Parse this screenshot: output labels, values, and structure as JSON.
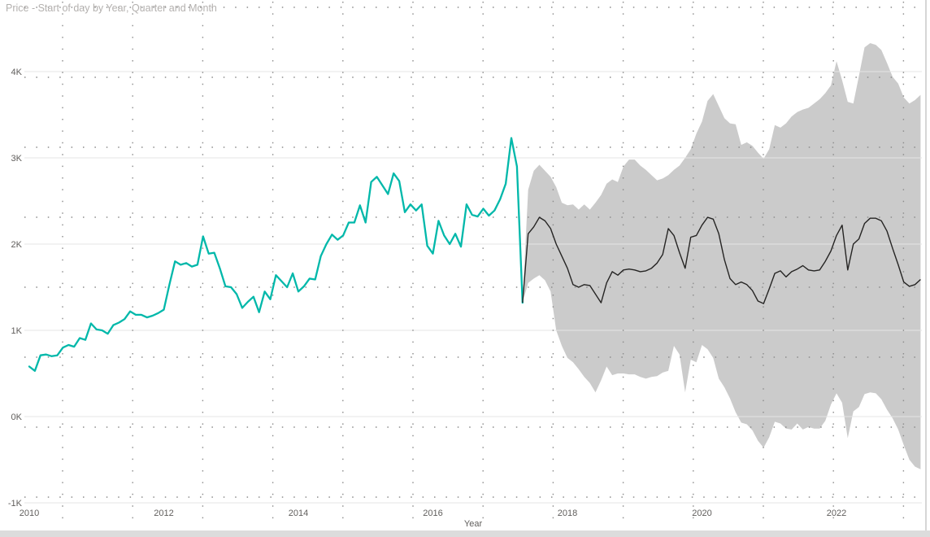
{
  "chart_data": {
    "type": "line",
    "title": "Price - Start of day by Year, Quarter and Month",
    "xlabel": "Year",
    "ylabel": "",
    "legend": "none",
    "grid": true,
    "xlim": [
      2009.93,
      2023.3
    ],
    "ylim_thousands": [
      -1.4,
      4.85
    ],
    "x_ticks": {
      "values": [
        2010,
        2012,
        2014,
        2016,
        2018,
        2020,
        2022
      ],
      "labels": [
        "2010",
        "2012",
        "2014",
        "2016",
        "2018",
        "2020",
        "2022"
      ]
    },
    "y_ticks": {
      "values_thousands": [
        4,
        3,
        2,
        1,
        0,
        -1
      ],
      "labels": [
        "4K",
        "3K",
        "2K",
        "1K",
        "0K",
        "-1K"
      ]
    },
    "unit": "thousands",
    "series": [
      {
        "name": "history",
        "color": "#01B8AA",
        "x_start": 2010.0,
        "x_end": 2017.333,
        "points_per_year": 12,
        "values_thousands": [
          0.58,
          0.53,
          0.71,
          0.72,
          0.7,
          0.71,
          0.8,
          0.83,
          0.81,
          0.91,
          0.89,
          1.08,
          1.01,
          1.0,
          0.96,
          1.06,
          1.09,
          1.13,
          1.22,
          1.18,
          1.18,
          1.15,
          1.17,
          1.2,
          1.24,
          1.53,
          1.8,
          1.76,
          1.78,
          1.74,
          1.76,
          2.09,
          1.89,
          1.9,
          1.72,
          1.51,
          1.5,
          1.42,
          1.26,
          1.33,
          1.39,
          1.21,
          1.45,
          1.36,
          1.64,
          1.57,
          1.5,
          1.66,
          1.45,
          1.51,
          1.6,
          1.59,
          1.86,
          2.0,
          2.11,
          2.05,
          2.1,
          2.25,
          2.25,
          2.45,
          2.25,
          2.72,
          2.78,
          2.68,
          2.58,
          2.82,
          2.73,
          2.37,
          2.46,
          2.39,
          2.46,
          1.98,
          1.89,
          2.27,
          2.1,
          2.0,
          2.12,
          1.97,
          2.46,
          2.34,
          2.32,
          2.41,
          2.33,
          2.39,
          2.52,
          2.7,
          3.23,
          2.9,
          1.32
        ]
      },
      {
        "name": "forecast",
        "color": "#252423",
        "x_start": 2017.333,
        "x_end": 2023.25,
        "points_per_year": 12,
        "values_thousands": [
          1.32,
          2.12,
          2.2,
          2.31,
          2.27,
          2.18,
          2.0,
          1.86,
          1.72,
          1.53,
          1.5,
          1.53,
          1.52,
          1.42,
          1.32,
          1.55,
          1.68,
          1.64,
          1.7,
          1.71,
          1.7,
          1.68,
          1.69,
          1.72,
          1.78,
          1.88,
          2.18,
          2.1,
          1.9,
          1.72,
          2.08,
          2.1,
          2.22,
          2.31,
          2.29,
          2.12,
          1.82,
          1.6,
          1.53,
          1.56,
          1.53,
          1.46,
          1.34,
          1.31,
          1.48,
          1.66,
          1.69,
          1.62,
          1.68,
          1.71,
          1.75,
          1.7,
          1.69,
          1.7,
          1.8,
          1.92,
          2.1,
          2.22,
          1.7,
          2.0,
          2.06,
          2.24,
          2.3,
          2.3,
          2.27,
          2.15,
          1.95,
          1.76,
          1.56,
          1.51,
          1.53,
          1.59
        ]
      }
    ],
    "band": {
      "name": "forecast-confidence-interval",
      "color": "#CBCBCB",
      "x_start": 2017.333,
      "x_end": 2023.25,
      "upper_thousands": [
        1.32,
        2.63,
        2.85,
        2.92,
        2.85,
        2.78,
        2.66,
        2.48,
        2.45,
        2.46,
        2.4,
        2.46,
        2.4,
        2.48,
        2.57,
        2.7,
        2.75,
        2.72,
        2.9,
        2.98,
        2.98,
        2.91,
        2.86,
        2.8,
        2.74,
        2.76,
        2.8,
        2.86,
        2.91,
        3.0,
        3.1,
        3.28,
        3.42,
        3.66,
        3.74,
        3.6,
        3.46,
        3.4,
        3.39,
        3.15,
        3.18,
        3.14,
        3.06,
        2.99,
        3.1,
        3.38,
        3.35,
        3.4,
        3.48,
        3.53,
        3.56,
        3.58,
        3.63,
        3.68,
        3.75,
        3.84,
        4.12,
        3.9,
        3.65,
        3.63,
        3.95,
        4.28,
        4.33,
        4.31,
        4.25,
        4.1,
        3.94,
        3.86,
        3.7,
        3.63,
        3.67,
        3.73
      ],
      "lower_thousands": [
        1.32,
        1.55,
        1.6,
        1.64,
        1.58,
        1.45,
        1.0,
        0.82,
        0.68,
        0.63,
        0.55,
        0.46,
        0.39,
        0.28,
        0.42,
        0.58,
        0.48,
        0.5,
        0.5,
        0.49,
        0.49,
        0.46,
        0.44,
        0.46,
        0.47,
        0.51,
        0.53,
        0.82,
        0.72,
        0.28,
        0.66,
        0.63,
        0.83,
        0.78,
        0.68,
        0.44,
        0.34,
        0.21,
        0.05,
        -0.07,
        -0.09,
        -0.16,
        -0.28,
        -0.36,
        -0.24,
        -0.06,
        -0.08,
        -0.14,
        -0.15,
        -0.08,
        -0.15,
        -0.12,
        -0.14,
        -0.14,
        -0.05,
        0.14,
        0.27,
        0.16,
        -0.25,
        0.06,
        0.11,
        0.26,
        0.28,
        0.27,
        0.2,
        0.08,
        -0.02,
        -0.15,
        -0.33,
        -0.5,
        -0.58,
        -0.61
      ]
    },
    "theme": {
      "background": "#FFFFFF",
      "history_line": "#01B8AA",
      "forecast_line": "#252423",
      "confidence_band": "#CBCBCB",
      "major_gridline": "#E6E6E6",
      "dot_gridline": "#8C8C8C",
      "axis_text": "#605E5C",
      "title_text": "#B3B0AE",
      "scrollbar": "#DCDCDC"
    }
  }
}
